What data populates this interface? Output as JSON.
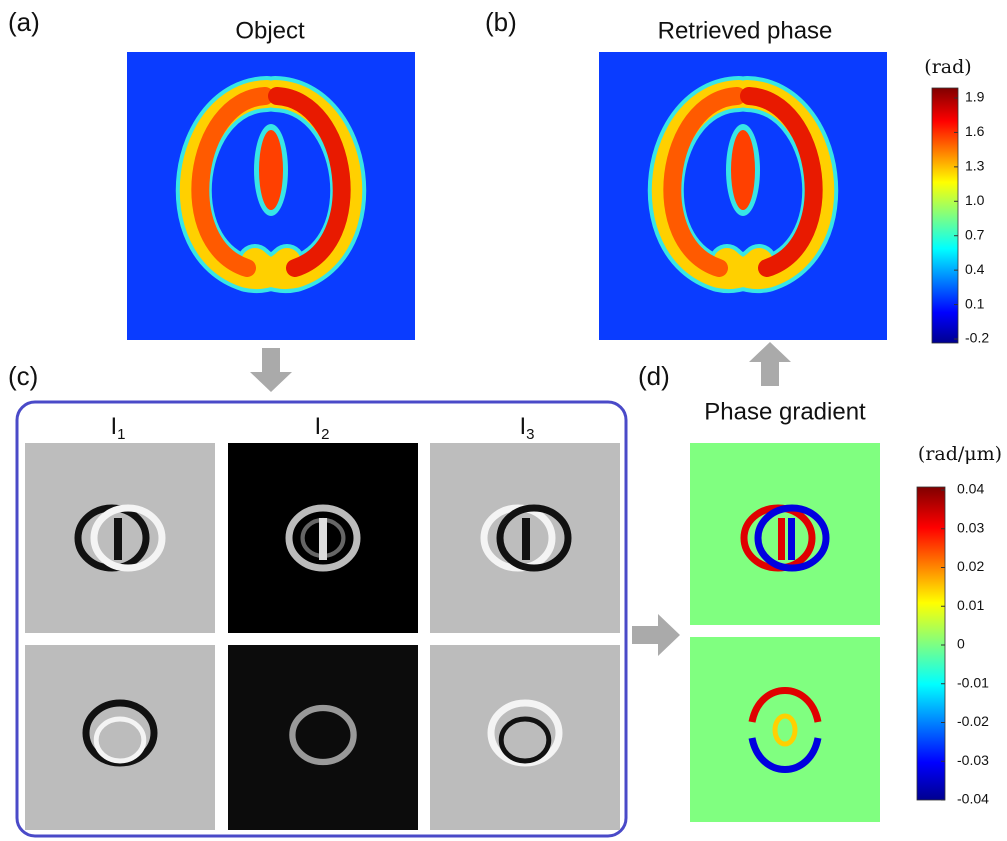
{
  "panels": {
    "a": {
      "label": "(a)",
      "title": "Object"
    },
    "b": {
      "label": "(b)",
      "title": "Retrieved phase"
    },
    "c": {
      "label": "(c)",
      "columns": [
        {
          "base": "I",
          "sub": "1"
        },
        {
          "base": "I",
          "sub": "2"
        },
        {
          "base": "I",
          "sub": "3"
        }
      ]
    },
    "d": {
      "label": "(d)",
      "title": "Phase gradient"
    }
  },
  "colorbars": [
    {
      "unit": "(rad)",
      "ticks": [
        "1.9",
        "1.6",
        "1.3",
        "1.0",
        "0.7",
        "0.4",
        "0.1",
        "-0.2"
      ]
    },
    {
      "unit": "(rad/μm)",
      "ticks": [
        "0.04",
        "0.03",
        "0.02",
        "0.01",
        "0",
        "-0.01",
        "-0.02",
        "-0.03",
        "-0.04"
      ]
    }
  ]
}
